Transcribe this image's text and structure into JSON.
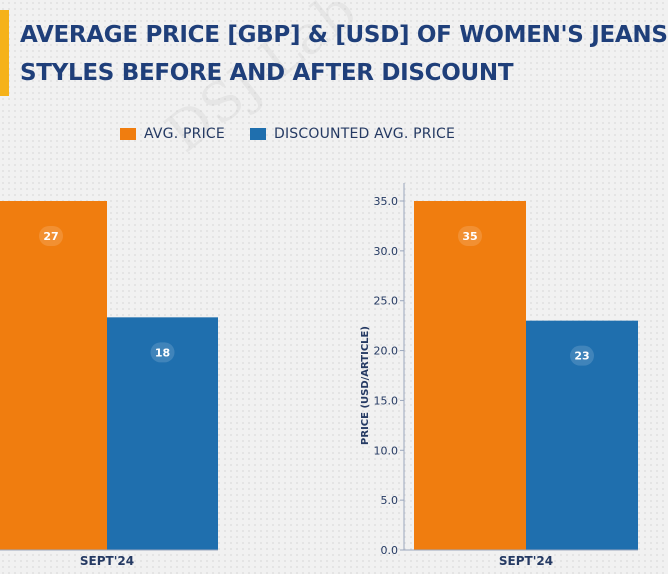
{
  "title": {
    "line1": "AVERAGE PRICE [GBP] & [USD] OF WOMEN'S JEANS",
    "line2": "STYLES BEFORE AND AFTER DISCOUNT"
  },
  "watermark": "DSJ Lab",
  "colors": {
    "orange": "#f07d0f",
    "blue": "#1f6fae",
    "accent": "#f5b21a",
    "title": "#1f3f7a"
  },
  "legend": [
    {
      "label": "AVG. PRICE",
      "color": "#f07d0f"
    },
    {
      "label": "DISCOUNTED AVG. PRICE",
      "color": "#1f6fae"
    }
  ],
  "chart_data": [
    {
      "type": "bar",
      "categories": [
        "SEPT'24"
      ],
      "series": [
        {
          "name": "AVG. PRICE",
          "values": [
            27
          ]
        },
        {
          "name": "DISCOUNTED AVG. PRICE",
          "values": [
            18
          ]
        }
      ],
      "ylabel": "",
      "ylim": [
        0,
        27
      ]
    },
    {
      "type": "bar",
      "categories": [
        "SEPT'24"
      ],
      "series": [
        {
          "name": "AVG. PRICE",
          "values": [
            35
          ]
        },
        {
          "name": "DISCOUNTED AVG. PRICE",
          "values": [
            23
          ]
        }
      ],
      "ylabel": "PRICE (USD/ARTICLE)",
      "ylim": [
        0,
        35
      ],
      "yticks": [
        "0.0",
        "5.0",
        "10.0",
        "15.0",
        "20.0",
        "25.0",
        "30.0",
        "35.0"
      ]
    }
  ]
}
